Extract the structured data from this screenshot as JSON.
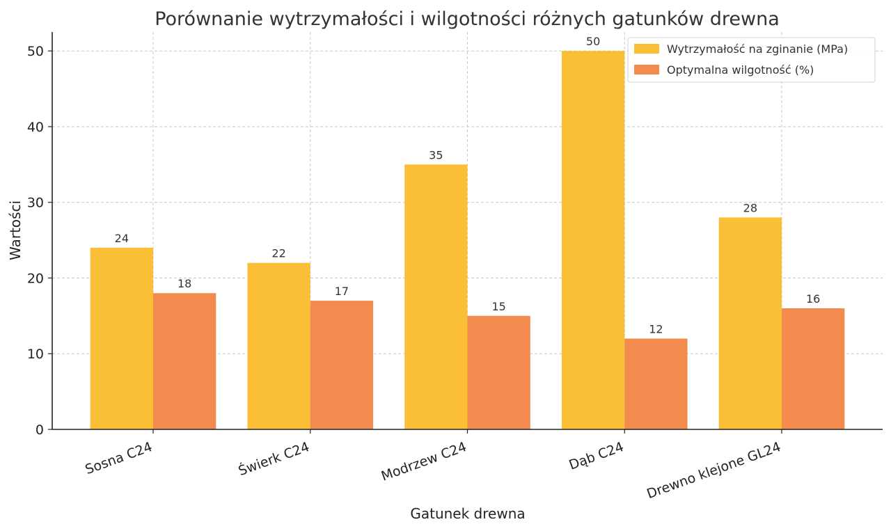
{
  "chart_data": {
    "type": "bar",
    "title": "Porównanie wytrzymałości i wilgotności różnych gatunków drewna",
    "xlabel": "Gatunek drewna",
    "ylabel": "Wartości",
    "categories": [
      "Sosna C24",
      "Świerk C24",
      "Modrzew C24",
      "Dąb C24",
      "Drewno klejone GL24"
    ],
    "series": [
      {
        "name": "Wytrzymałość na zginanie (MPa)",
        "values": [
          24,
          22,
          35,
          50,
          28
        ],
        "color": "#FBBF37"
      },
      {
        "name": "Optymalna wilgotność (%)",
        "values": [
          18,
          17,
          15,
          12,
          16
        ],
        "color": "#F48B4E"
      }
    ],
    "ylim": [
      0,
      52.5
    ],
    "yticks": [
      0,
      10,
      20,
      30,
      40,
      50
    ],
    "grid": true,
    "legend_position": "top-right"
  }
}
